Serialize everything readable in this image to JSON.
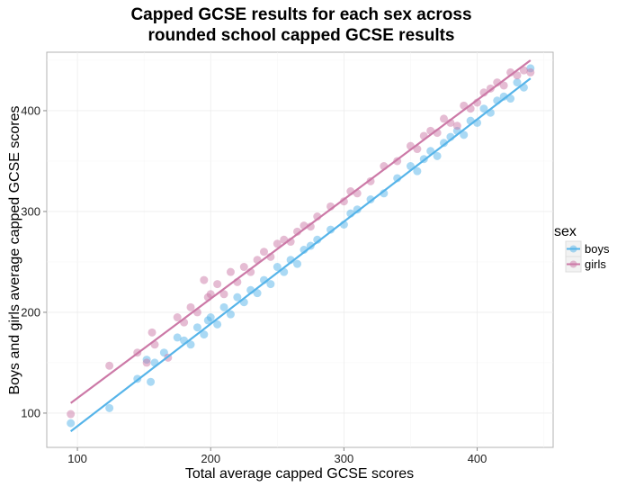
{
  "chart_data": {
    "type": "scatter",
    "title": [
      "Capped GCSE results for each sex across",
      "rounded school capped GCSE results"
    ],
    "xlabel": "Total average capped GCSE scores",
    "ylabel": "Boys and girls average capped GCSE scores",
    "xlim": [
      77,
      457
    ],
    "ylim": [
      66,
      458
    ],
    "xticks": [
      100,
      200,
      300,
      400
    ],
    "yticks": [
      100,
      200,
      300,
      400
    ],
    "grid": true,
    "legend": {
      "title": "sex",
      "placement": "right"
    },
    "series": [
      {
        "name": "boys",
        "color": "#56B4E9",
        "fit_line": [
          [
            95,
            82
          ],
          [
            440,
            432
          ]
        ],
        "x": [
          95,
          124,
          145,
          152,
          155,
          158,
          165,
          175,
          180,
          185,
          190,
          195,
          198,
          200,
          205,
          210,
          215,
          220,
          225,
          230,
          235,
          240,
          245,
          250,
          255,
          260,
          265,
          270,
          275,
          280,
          290,
          300,
          305,
          310,
          320,
          330,
          340,
          350,
          355,
          360,
          365,
          370,
          375,
          380,
          385,
          390,
          395,
          400,
          405,
          410,
          415,
          420,
          425,
          430,
          435,
          440
        ],
        "y": [
          90,
          105,
          134,
          153,
          131,
          150,
          160,
          175,
          172,
          168,
          185,
          178,
          192,
          195,
          188,
          205,
          198,
          215,
          210,
          222,
          219,
          232,
          228,
          245,
          240,
          252,
          248,
          262,
          266,
          272,
          282,
          287,
          298,
          302,
          312,
          318,
          333,
          345,
          340,
          352,
          360,
          355,
          368,
          374,
          380,
          376,
          390,
          388,
          402,
          398,
          410,
          414,
          412,
          428,
          423,
          442
        ]
      },
      {
        "name": "girls",
        "color": "#CC79A7",
        "fit_line": [
          [
            95,
            110
          ],
          [
            440,
            450
          ]
        ],
        "x": [
          95,
          124,
          145,
          152,
          156,
          158,
          168,
          175,
          180,
          185,
          190,
          195,
          198,
          200,
          205,
          210,
          215,
          220,
          225,
          230,
          235,
          240,
          245,
          250,
          255,
          260,
          265,
          270,
          275,
          280,
          290,
          300,
          305,
          310,
          320,
          330,
          340,
          350,
          355,
          360,
          365,
          370,
          375,
          380,
          385,
          390,
          395,
          400,
          405,
          410,
          415,
          420,
          425,
          430,
          435,
          440
        ],
        "y": [
          99,
          147,
          160,
          150,
          180,
          168,
          155,
          195,
          190,
          205,
          200,
          232,
          215,
          218,
          228,
          218,
          240,
          230,
          245,
          240,
          252,
          260,
          255,
          268,
          272,
          270,
          280,
          286,
          285,
          295,
          305,
          310,
          320,
          318,
          330,
          345,
          350,
          365,
          362,
          375,
          380,
          378,
          392,
          388,
          385,
          405,
          402,
          408,
          418,
          422,
          428,
          425,
          438,
          435,
          440,
          438
        ]
      }
    ]
  }
}
